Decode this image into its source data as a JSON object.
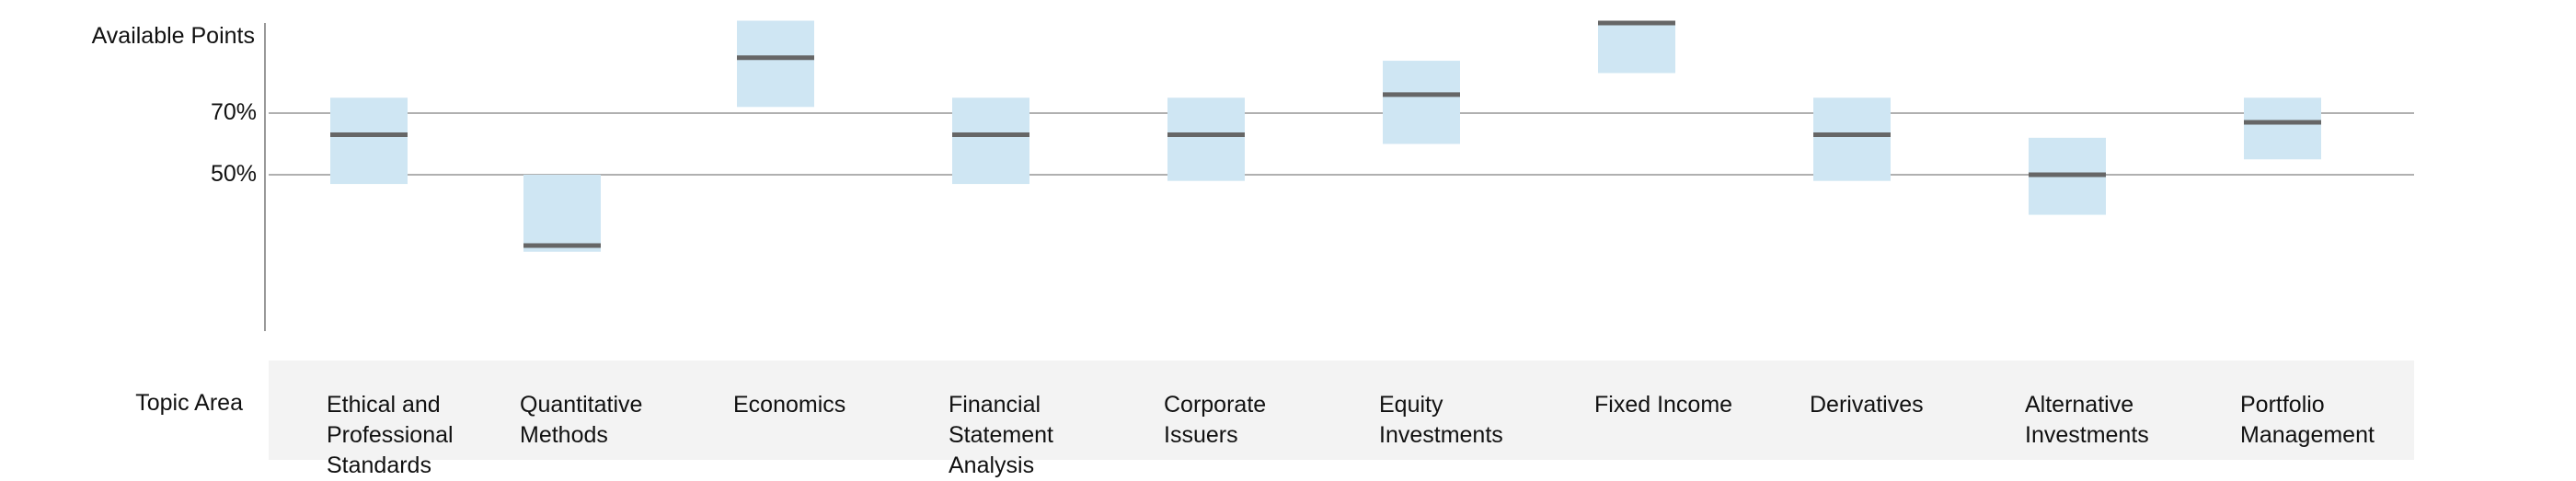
{
  "y_axis_title": "Available Points",
  "x_axis_title": "Topic Area",
  "colors": {
    "band": "#cfe6f3",
    "marker": "#666666",
    "gridline": "#b0b0b0",
    "axis": "#999999",
    "panel": "#f3f3f3"
  },
  "chart_data": {
    "type": "bar",
    "title": "",
    "xlabel": "Topic Area",
    "ylabel": "Available Points",
    "reference_lines": [
      {
        "label": "70%",
        "value": 70
      },
      {
        "label": "50%",
        "value": 50
      }
    ],
    "categories": [
      "Ethical and Professional Standards",
      "Quantitative Methods",
      "Economics",
      "Financial Statement Analysis",
      "Corporate Issuers",
      "Equity Investments",
      "Fixed Income",
      "Derivatives",
      "Alternative Investments",
      "Portfolio Management"
    ],
    "series": [
      {
        "name": "",
        "low": [
          47,
          25,
          72,
          47,
          48,
          60,
          83,
          48,
          37,
          55
        ],
        "high": [
          75,
          50,
          100,
          75,
          75,
          87,
          100,
          75,
          62,
          75
        ],
        "mid": [
          63,
          27,
          88,
          63,
          63,
          76,
          100,
          63,
          50,
          67
        ]
      }
    ],
    "ylim": [
      0,
      100
    ],
    "grid": false
  }
}
